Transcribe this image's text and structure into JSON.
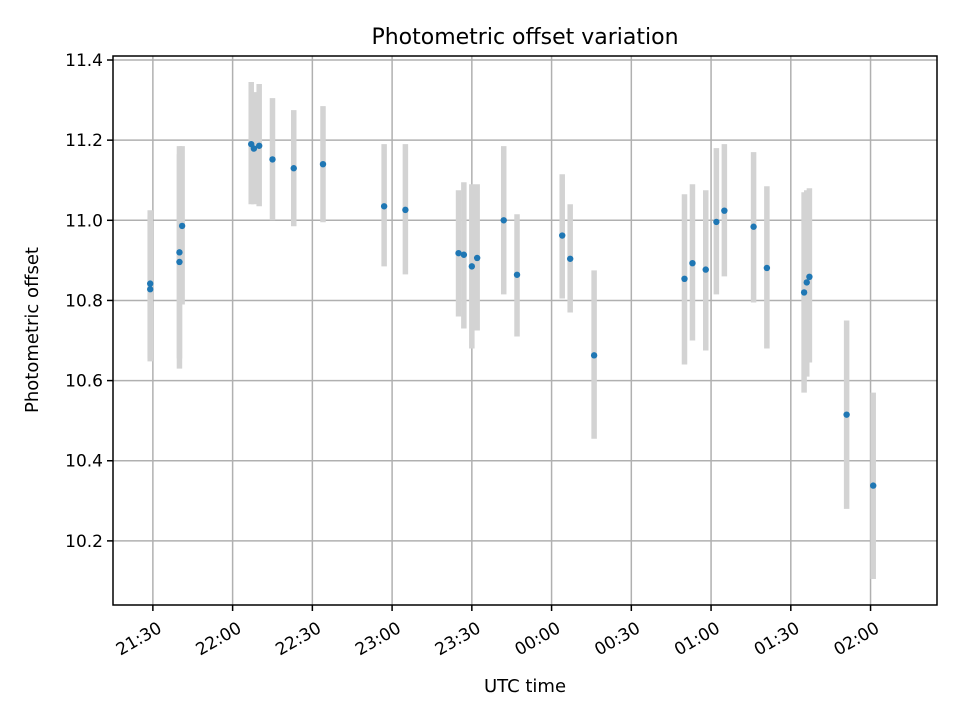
{
  "chart_data": {
    "type": "scatter",
    "title": "Photometric offset variation",
    "xlabel": "UTC time",
    "ylabel": "Photometric offset",
    "x_axis": "time (minutes relative to 21:00 UTC)",
    "xlim": [
      "21:15",
      "02:25"
    ],
    "ylim": [
      10.04,
      11.41
    ],
    "x_ticks": [
      {
        "t": "21:30",
        "label": "21:30"
      },
      {
        "t": "22:00",
        "label": "22:00"
      },
      {
        "t": "22:30",
        "label": "22:30"
      },
      {
        "t": "23:00",
        "label": "23:00"
      },
      {
        "t": "23:30",
        "label": "23:30"
      },
      {
        "t": "00:00",
        "label": "00:00"
      },
      {
        "t": "00:30",
        "label": "00:30"
      },
      {
        "t": "01:00",
        "label": "01:00"
      },
      {
        "t": "01:30",
        "label": "01:30"
      },
      {
        "t": "02:00",
        "label": "02:00"
      }
    ],
    "y_ticks": [
      {
        "value": 10.2,
        "label": "10.2"
      },
      {
        "value": 10.4,
        "label": "10.4"
      },
      {
        "value": 10.6,
        "label": "10.6"
      },
      {
        "value": 10.8,
        "label": "10.8"
      },
      {
        "value": 11.0,
        "label": "11.0"
      },
      {
        "value": 11.2,
        "label": "11.2"
      },
      {
        "value": 11.4,
        "label": "11.4"
      }
    ],
    "grid": true,
    "marker_color": "#1f77b4",
    "errorbar_color": "#d3d3d3",
    "points": [
      {
        "t": "21:29",
        "y": 10.842,
        "lo": 10.655,
        "hi": 11.025
      },
      {
        "t": "21:29",
        "y": 10.828,
        "lo": 10.648,
        "hi": 11.012
      },
      {
        "t": "21:40",
        "y": 10.896,
        "lo": 10.63,
        "hi": 11.165
      },
      {
        "t": "21:40",
        "y": 10.92,
        "lo": 10.655,
        "hi": 11.185
      },
      {
        "t": "21:41",
        "y": 10.986,
        "lo": 10.79,
        "hi": 11.185
      },
      {
        "t": "22:07",
        "y": 11.19,
        "lo": 11.04,
        "hi": 11.345
      },
      {
        "t": "22:08",
        "y": 11.179,
        "lo": 11.04,
        "hi": 11.32
      },
      {
        "t": "22:10",
        "y": 11.186,
        "lo": 11.035,
        "hi": 11.34
      },
      {
        "t": "22:15",
        "y": 11.152,
        "lo": 11.0,
        "hi": 11.305
      },
      {
        "t": "22:23",
        "y": 11.13,
        "lo": 10.985,
        "hi": 11.275
      },
      {
        "t": "22:34",
        "y": 11.14,
        "lo": 10.995,
        "hi": 11.285
      },
      {
        "t": "22:57",
        "y": 11.035,
        "lo": 10.885,
        "hi": 11.19
      },
      {
        "t": "23:05",
        "y": 11.026,
        "lo": 10.865,
        "hi": 11.19
      },
      {
        "t": "23:25",
        "y": 10.918,
        "lo": 10.76,
        "hi": 11.075
      },
      {
        "t": "23:27",
        "y": 10.914,
        "lo": 10.73,
        "hi": 11.095
      },
      {
        "t": "23:30",
        "y": 10.885,
        "lo": 10.68,
        "hi": 11.09
      },
      {
        "t": "23:32",
        "y": 10.906,
        "lo": 10.725,
        "hi": 11.09
      },
      {
        "t": "23:42",
        "y": 11.0,
        "lo": 10.815,
        "hi": 11.185
      },
      {
        "t": "23:47",
        "y": 10.864,
        "lo": 10.71,
        "hi": 11.015
      },
      {
        "t": "00:04",
        "y": 10.962,
        "lo": 10.805,
        "hi": 11.115
      },
      {
        "t": "00:07",
        "y": 10.904,
        "lo": 10.77,
        "hi": 11.04
      },
      {
        "t": "00:16",
        "y": 10.663,
        "lo": 10.455,
        "hi": 10.875
      },
      {
        "t": "00:50",
        "y": 10.854,
        "lo": 10.64,
        "hi": 11.065
      },
      {
        "t": "00:53",
        "y": 10.893,
        "lo": 10.7,
        "hi": 11.09
      },
      {
        "t": "00:58",
        "y": 10.877,
        "lo": 10.675,
        "hi": 11.075
      },
      {
        "t": "01:02",
        "y": 10.996,
        "lo": 10.815,
        "hi": 11.18
      },
      {
        "t": "01:05",
        "y": 11.024,
        "lo": 10.86,
        "hi": 11.19
      },
      {
        "t": "01:16",
        "y": 10.984,
        "lo": 10.795,
        "hi": 11.17
      },
      {
        "t": "01:21",
        "y": 10.881,
        "lo": 10.68,
        "hi": 11.085
      },
      {
        "t": "01:35",
        "y": 10.82,
        "lo": 10.57,
        "hi": 11.07
      },
      {
        "t": "01:36",
        "y": 10.845,
        "lo": 10.61,
        "hi": 11.075
      },
      {
        "t": "01:37",
        "y": 10.859,
        "lo": 10.645,
        "hi": 11.08
      },
      {
        "t": "01:51",
        "y": 10.515,
        "lo": 10.28,
        "hi": 10.75
      },
      {
        "t": "02:01",
        "y": 10.338,
        "lo": 10.105,
        "hi": 10.57
      }
    ]
  }
}
